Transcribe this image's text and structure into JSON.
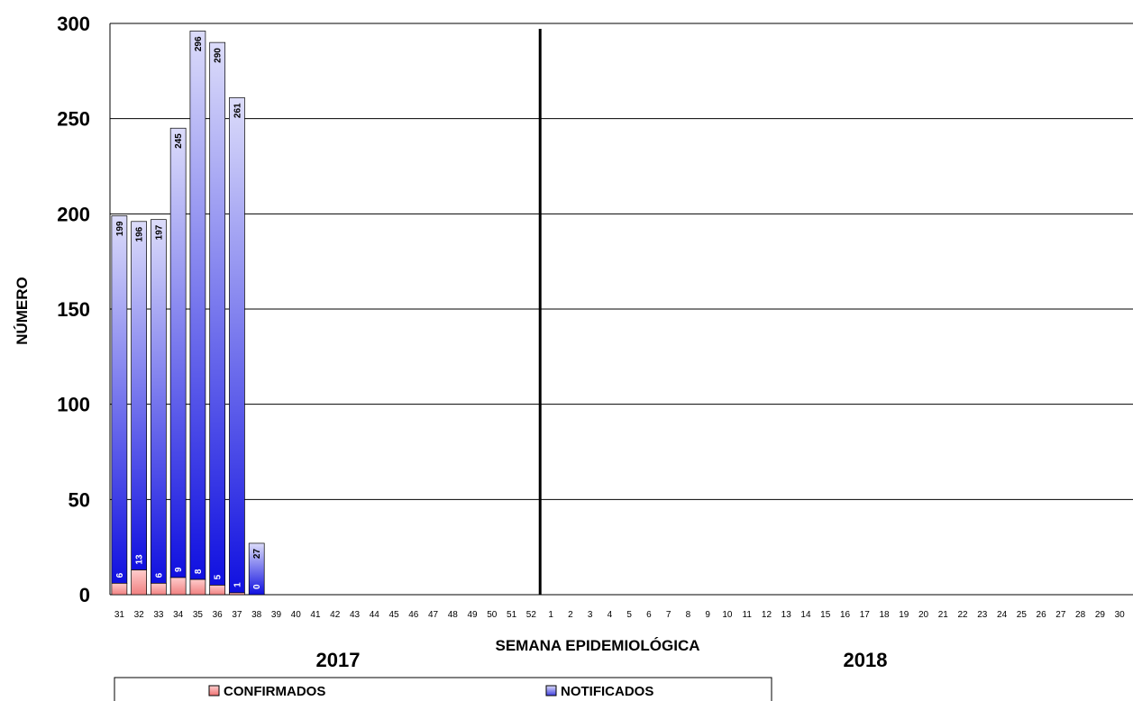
{
  "chart_data": {
    "type": "bar",
    "stacked": true,
    "xlabel": "SEMANA EPIDEMIOLÓGICA",
    "ylabel": "NÚMERO",
    "ylim": [
      0,
      300
    ],
    "yticks": [
      0,
      50,
      100,
      150,
      200,
      250,
      300
    ],
    "grid": true,
    "legend_position": "bottom",
    "year_groups": [
      {
        "label": "2017",
        "start_index": 0,
        "end_index": 21
      },
      {
        "label": "2018",
        "start_index": 22,
        "end_index": 51
      }
    ],
    "categories": [
      "31",
      "32",
      "33",
      "34",
      "35",
      "36",
      "37",
      "38",
      "39",
      "40",
      "41",
      "42",
      "43",
      "44",
      "45",
      "46",
      "47",
      "48",
      "49",
      "50",
      "51",
      "52",
      "1",
      "2",
      "3",
      "4",
      "5",
      "6",
      "7",
      "8",
      "9",
      "10",
      "11",
      "12",
      "13",
      "14",
      "15",
      "16",
      "17",
      "18",
      "19",
      "20",
      "21",
      "22",
      "23",
      "24",
      "25",
      "26",
      "27",
      "28",
      "29",
      "30"
    ],
    "series": [
      {
        "name": "CONFIRMADOS",
        "color": "#f08080",
        "values": [
          6,
          13,
          6,
          9,
          8,
          5,
          1,
          0,
          null,
          null,
          null,
          null,
          null,
          null,
          null,
          null,
          null,
          null,
          null,
          null,
          null,
          null,
          null,
          null,
          null,
          null,
          null,
          null,
          null,
          null,
          null,
          null,
          null,
          null,
          null,
          null,
          null,
          null,
          null,
          null,
          null,
          null,
          null,
          null,
          null,
          null,
          null,
          null,
          null,
          null,
          null,
          null
        ],
        "labels": [
          "6",
          "13",
          "6",
          "9",
          "8",
          "5",
          "1",
          "0"
        ]
      },
      {
        "name": "NOTIFICADOS",
        "color": "#2222dd",
        "values": [
          199,
          196,
          197,
          245,
          296,
          290,
          261,
          27,
          null,
          null,
          null,
          null,
          null,
          null,
          null,
          null,
          null,
          null,
          null,
          null,
          null,
          null,
          null,
          null,
          null,
          null,
          null,
          null,
          null,
          null,
          null,
          null,
          null,
          null,
          null,
          null,
          null,
          null,
          null,
          null,
          null,
          null,
          null,
          null,
          null,
          null,
          null,
          null,
          null,
          null,
          null,
          null
        ],
        "labels": [
          "199",
          "196",
          "197",
          "245",
          "296",
          "290",
          "261",
          "27"
        ]
      }
    ]
  }
}
